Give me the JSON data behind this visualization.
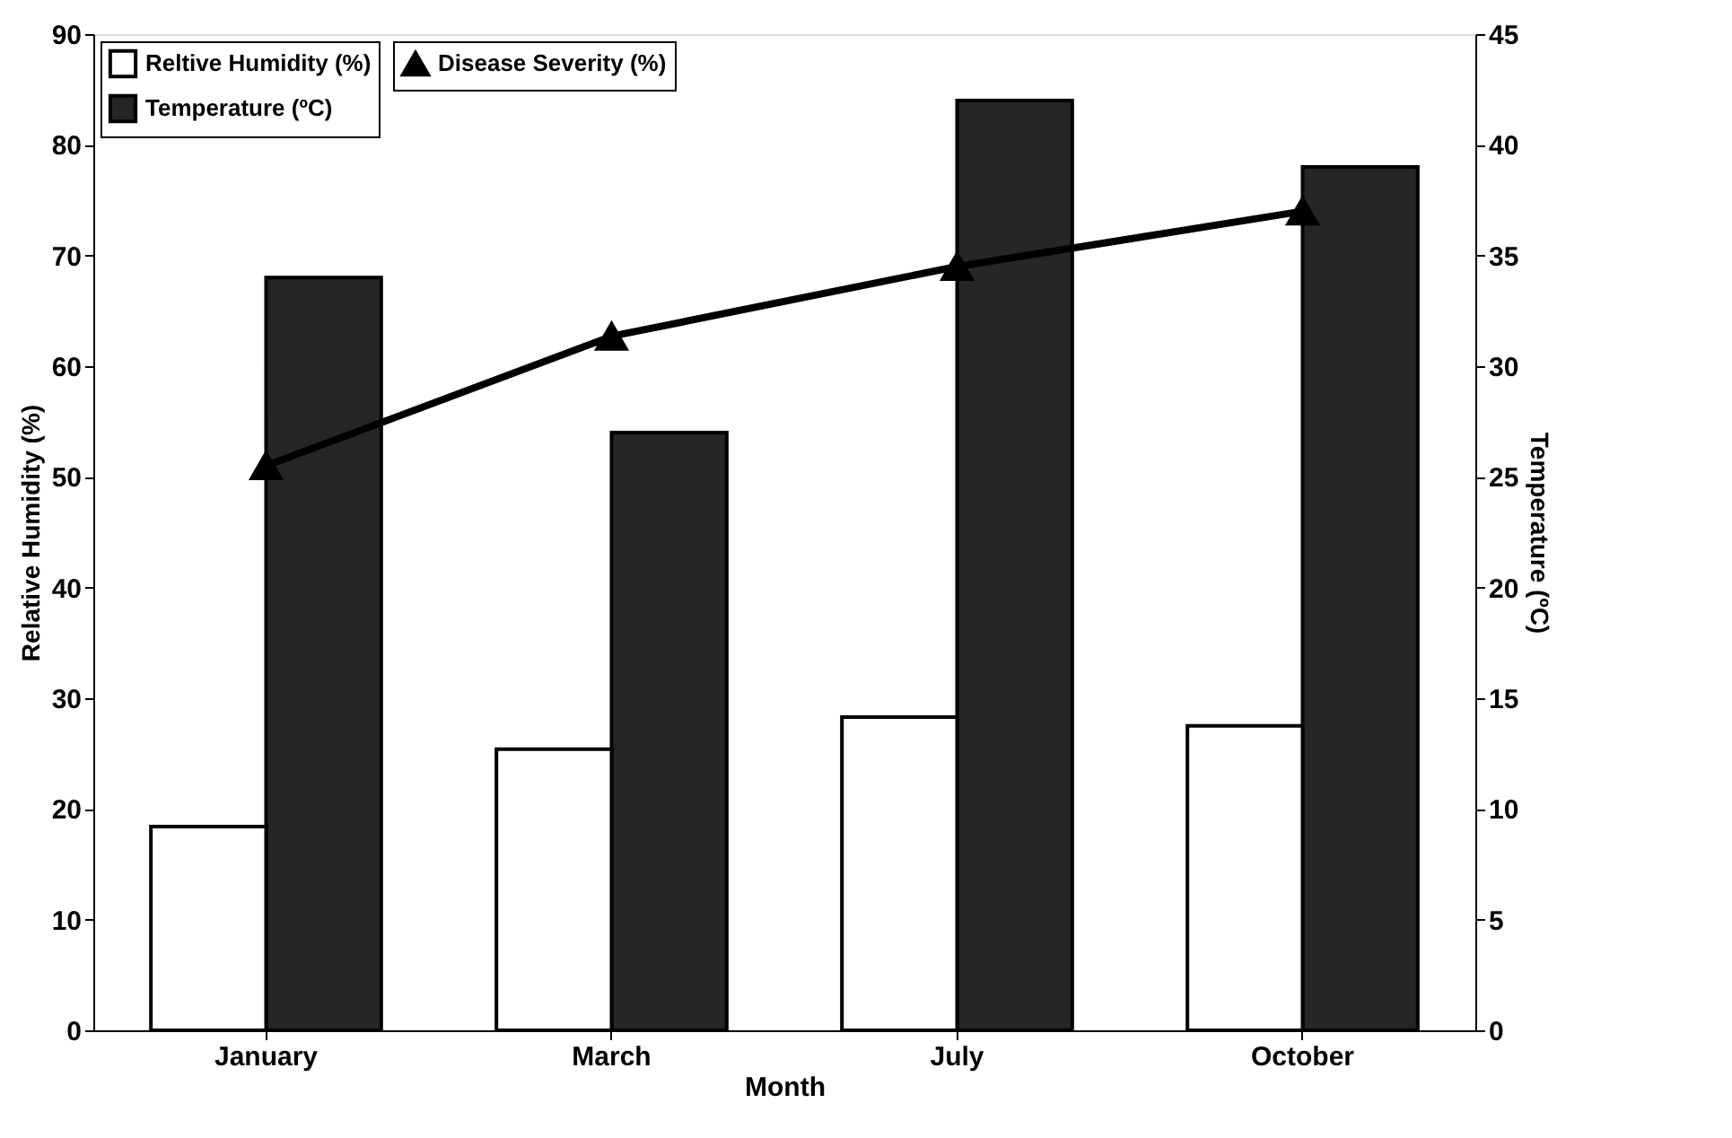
{
  "chart_data": {
    "type": "bar",
    "xlabel": "Month",
    "ylabel": "Relative Humidity (%)",
    "y2label": "Temperature (ºC)",
    "categories": [
      "January",
      "March",
      "July",
      "October"
    ],
    "series": [
      {
        "name": "Reltive Humidity (%)",
        "color": "#ffffff",
        "values": [
          18.4,
          25.4,
          28.3,
          27.5
        ]
      },
      {
        "name": "Temperature (ºC)",
        "color": "#262626",
        "axis": "y2",
        "values": [
          34,
          27,
          42,
          39
        ]
      },
      {
        "name": "Disease Severity (%)",
        "color": "#000000",
        "type": "line",
        "marker": "triangle",
        "values": [
          51,
          62.7,
          69,
          74
        ]
      }
    ],
    "ylim": [
      0,
      90
    ],
    "yticks": [
      0,
      10,
      20,
      30,
      40,
      50,
      60,
      70,
      80,
      90
    ],
    "y2lim": [
      0,
      45
    ],
    "y2ticks": [
      0,
      5,
      10,
      15,
      20,
      25,
      30,
      35,
      40,
      45
    ],
    "grid": false,
    "legend": "top left"
  }
}
